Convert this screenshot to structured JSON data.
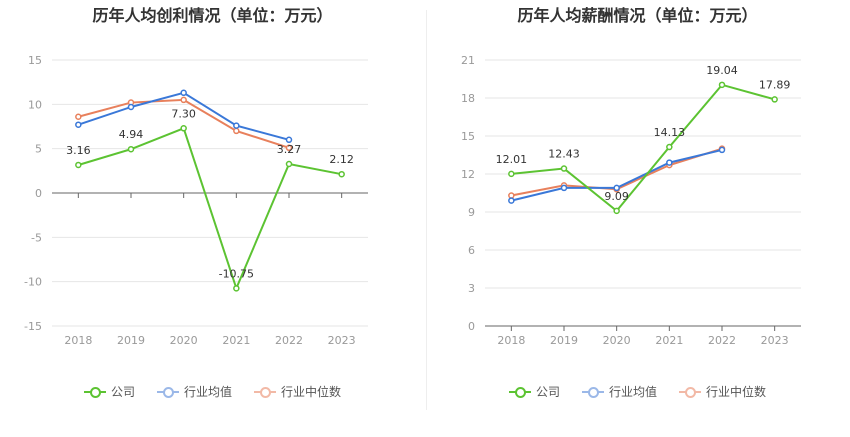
{
  "chart_data": [
    {
      "type": "line",
      "title": "历年人均创利情况（单位：万元）",
      "categories": [
        "2018",
        "2019",
        "2020",
        "2021",
        "2022",
        "2023"
      ],
      "ylim": [
        -15,
        15
      ],
      "yticks": [
        -15,
        -10,
        -5,
        0,
        5,
        10,
        15
      ],
      "grid": true,
      "legend": "bottom",
      "series": [
        {
          "name": "公司",
          "color": "#5cc332",
          "values": [
            3.16,
            4.94,
            7.3,
            -10.75,
            3.27,
            2.12
          ],
          "labels": [
            "3.16",
            "4.94",
            "7.30",
            "-10.75",
            "3.27",
            "2.12"
          ]
        },
        {
          "name": "行业均值",
          "color": "#3a78d8",
          "values": [
            7.7,
            9.7,
            11.3,
            7.6,
            6.0,
            null
          ]
        },
        {
          "name": "行业中位数",
          "color": "#e8805c",
          "values": [
            8.6,
            10.2,
            10.5,
            7.0,
            5.1,
            null
          ]
        }
      ]
    },
    {
      "type": "line",
      "title": "历年人均薪酬情况（单位：万元）",
      "categories": [
        "2018",
        "2019",
        "2020",
        "2021",
        "2022",
        "2023"
      ],
      "ylim": [
        0,
        21
      ],
      "yticks": [
        0,
        3,
        6,
        9,
        12,
        15,
        18,
        21
      ],
      "grid": true,
      "legend": "bottom",
      "series": [
        {
          "name": "公司",
          "color": "#5cc332",
          "values": [
            12.01,
            12.43,
            9.09,
            14.13,
            19.04,
            17.89
          ],
          "labels": [
            "12.01",
            "12.43",
            "9.09",
            "14.13",
            "19.04",
            "17.89"
          ]
        },
        {
          "name": "行业均值",
          "color": "#3a78d8",
          "values": [
            9.9,
            10.9,
            10.9,
            12.9,
            13.9,
            null
          ]
        },
        {
          "name": "行业中位数",
          "color": "#e8805c",
          "values": [
            10.3,
            11.1,
            10.8,
            12.7,
            14.0,
            null
          ]
        }
      ]
    }
  ],
  "legend_items": [
    {
      "name": "公司",
      "color": "#5cc332"
    },
    {
      "name": "行业均值",
      "color": "#9bb8e8"
    },
    {
      "name": "行业中位数",
      "color": "#f2b9a6"
    }
  ]
}
